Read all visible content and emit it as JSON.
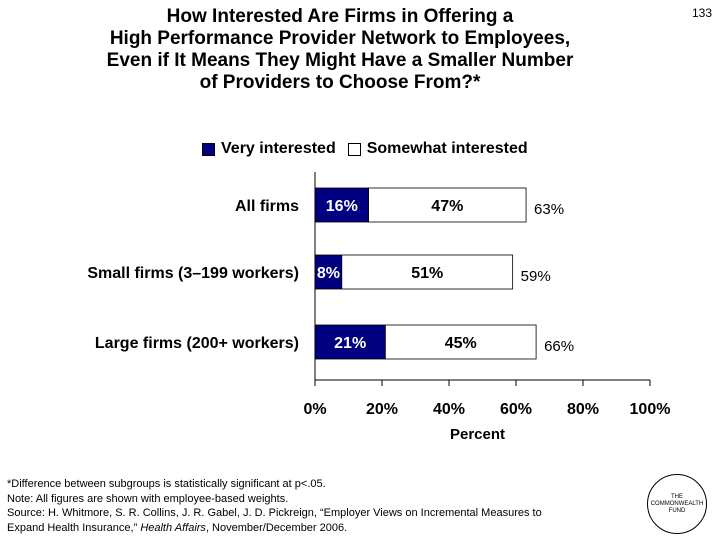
{
  "title_lines": [
    "How Interested Are Firms in Offering a",
    "High Performance Provider Network to Employees,",
    "Even if It Means They Might Have a Smaller Number",
    "of Providers to Choose From?*"
  ],
  "page_number": "133",
  "legend": {
    "very": "Very interested",
    "somewhat": "Somewhat interested"
  },
  "colors": {
    "very": "#000080",
    "somewhat": "#ffffff",
    "axis": "#000000"
  },
  "chart_data": {
    "type": "bar",
    "orientation": "horizontal",
    "stacked": true,
    "categories": [
      "All firms",
      "Small firms (3–199 workers)",
      "Large firms (200+ workers)"
    ],
    "series": [
      {
        "name": "Very interested",
        "values": [
          16,
          8,
          21
        ],
        "labels": [
          "16%",
          "8%",
          "21%"
        ]
      },
      {
        "name": "Somewhat interested",
        "values": [
          47,
          51,
          45
        ],
        "labels": [
          "47%",
          "51%",
          "45%"
        ]
      }
    ],
    "totals": [
      "63%",
      "59%",
      "66%"
    ],
    "xlabel": "Percent",
    "xlim": [
      0,
      100
    ],
    "xticks": [
      "0%",
      "20%",
      "40%",
      "60%",
      "80%",
      "100%"
    ]
  },
  "notes": {
    "line1": "*Difference between subgroups is statistically significant at p<.05.",
    "line2": "Note: All figures are shown with employee-based weights.",
    "line3": "Source: H. Whitmore, S. R. Collins, J. R. Gabel, J. D. Pickreign, “Employer Views on Incremental Measures to",
    "line4_plain": "Expand Health Insurance,” ",
    "line4_italic": "Health Affairs",
    "line4_end": ", November/December 2006."
  },
  "logo": {
    "line1": "THE",
    "line2": "COMMONWEALTH",
    "line3": "FUND"
  }
}
